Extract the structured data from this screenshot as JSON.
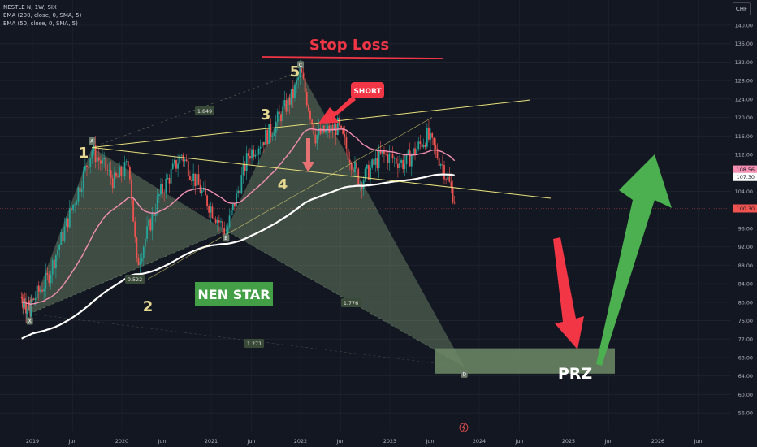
{
  "header": {
    "symbol_line": "NESTLE N, 1W, SIX",
    "indicators": [
      "EMA (200, close, 0, SMA, 5)",
      "EMA (50, close, 0, SMA, 5)"
    ],
    "currency": "CHF"
  },
  "colors": {
    "background": "#131722",
    "up_candle": "#26a69a",
    "down_candle": "#ef5350",
    "ema200": "#ffffff",
    "ema50": "#f48fb1",
    "pattern_fill": "#9bbf8a",
    "trendline": "#e8e07a",
    "stop_loss": "#f23645",
    "nen_star_bg": "#43a047",
    "prz_fill": "#6e8a66",
    "green_arrow": "#4caf50",
    "red_arrow": "#f23645"
  },
  "annotations": {
    "stop_loss": "Stop Loss",
    "short": "SHORT",
    "nen_star": "NEN STAR",
    "prz": "PRZ",
    "waves": [
      "1",
      "2",
      "3",
      "4",
      "5"
    ],
    "points": [
      "X",
      "A",
      "B",
      "C",
      "D"
    ],
    "ratios": [
      "1.849",
      "0.522",
      "1.776",
      "1.271"
    ]
  },
  "chart_data": {
    "type": "candlestick",
    "y_axis": {
      "ticks": [
        "140.00",
        "136.00",
        "132.00",
        "128.00",
        "124.00",
        "120.00",
        "116.00",
        "112.00",
        "108.00",
        "104.00",
        "100.00",
        "96.00",
        "92.00",
        "88.00",
        "84.00",
        "80.00",
        "76.00",
        "72.00",
        "68.00",
        "64.00",
        "60.00",
        "56.00"
      ],
      "range": [
        54,
        142
      ]
    },
    "x_axis": {
      "ticks": [
        "2019",
        "Jun",
        "2020",
        "Jun",
        "2021",
        "Jun",
        "2022",
        "Jun",
        "2023",
        "Jun",
        "2024",
        "Jun",
        "2025",
        "Jun",
        "2026",
        "Jun"
      ]
    },
    "price_labels": [
      {
        "value": "108.56",
        "color": "#f48fb1"
      },
      {
        "value": "107.30",
        "color": "#ffffff"
      },
      {
        "value": "100.30",
        "color": "#ef5350"
      }
    ],
    "harmonic_points": [
      {
        "label": "X",
        "date": "2018-12",
        "price": 77.5
      },
      {
        "label": "A",
        "date": "2019-09",
        "price": 113.5
      },
      {
        "label": "B",
        "date": "2021-03",
        "price": 95.5
      },
      {
        "label": "C",
        "date": "2022-01",
        "price": 130.0
      },
      {
        "label": "D",
        "date": "2023-11",
        "price": 66.0
      }
    ],
    "price_path": [
      [
        "2018-09",
        81
      ],
      [
        "2018-12",
        78
      ],
      [
        "2019-03",
        85
      ],
      [
        "2019-06",
        99
      ],
      [
        "2019-09",
        113
      ],
      [
        "2019-12",
        106
      ],
      [
        "2020-02",
        110
      ],
      [
        "2020-03",
        88
      ],
      [
        "2020-06",
        103
      ],
      [
        "2020-09",
        112
      ],
      [
        "2020-12",
        103
      ],
      [
        "2021-03",
        95
      ],
      [
        "2021-06",
        112
      ],
      [
        "2021-09",
        117
      ],
      [
        "2021-12",
        125
      ],
      [
        "2022-01",
        130
      ],
      [
        "2022-03",
        116
      ],
      [
        "2022-06",
        118
      ],
      [
        "2022-09",
        106
      ],
      [
        "2022-12",
        112
      ],
      [
        "2023-03",
        110
      ],
      [
        "2023-06",
        116
      ],
      [
        "2023-08",
        110
      ],
      [
        "2023-10",
        101
      ]
    ]
  }
}
